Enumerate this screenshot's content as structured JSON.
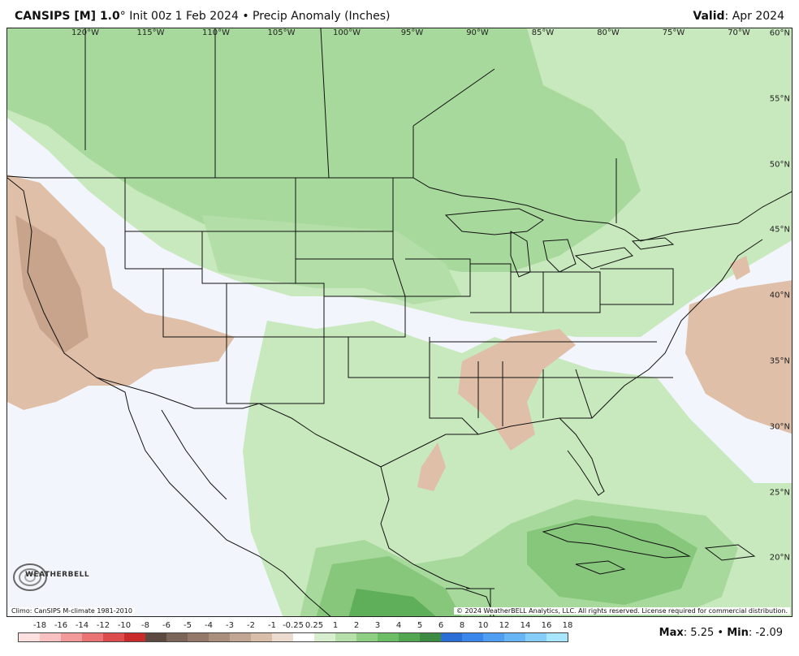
{
  "header": {
    "model": "CANSIPS [M] 1.0",
    "degree": "°",
    "init": " Init 00z 1 Feb 2024",
    "bullet": " • ",
    "product": "Precip Anomaly (Inches)",
    "valid_label": "Valid",
    "valid_value": ": Apr 2024"
  },
  "map": {
    "lon_labels": [
      "120°W",
      "115°W",
      "110°W",
      "105°W",
      "100°W",
      "95°W",
      "90°W",
      "85°W",
      "80°W",
      "75°W",
      "70°W"
    ],
    "lat_labels": [
      "60°N",
      "55°N",
      "50°N",
      "45°N",
      "40°N",
      "35°N",
      "30°N",
      "25°N",
      "20°N"
    ],
    "climo_note": "Climo: CanSIPS M-climate 1981-2010",
    "copyright_note": "© 2024 WeatherBELL Analytics, LLC. All rights reserved. License required for commercial distribution.",
    "logo_text": "WEATHERBELL",
    "colors": {
      "ocean_land_base": "#f2f5fb",
      "light_green": "#c8e8bd",
      "mid_green": "#a8d99c",
      "green": "#86c77b",
      "dark_green": "#5fae5a",
      "tan": "#dfbfa8",
      "brown": "#c9a48c",
      "boundary": "#111111"
    }
  },
  "legend": {
    "tick_labels": [
      "-18",
      "-16",
      "-14",
      "-12",
      "-10",
      "-8",
      "-6",
      "-5",
      "-4",
      "-3",
      "-2",
      "-1",
      "-0.25",
      "0.25",
      "1",
      "2",
      "3",
      "4",
      "5",
      "6",
      "8",
      "10",
      "12",
      "14",
      "16",
      "18"
    ],
    "colors": [
      "#fde0e0",
      "#f9c1c1",
      "#f29a9a",
      "#ea7474",
      "#de4d4d",
      "#c92b2b",
      "#5c4a42",
      "#7b6558",
      "#94796a",
      "#aa8f7d",
      "#c2a592",
      "#d8bea9",
      "#ecdccf",
      "#ffffff",
      "#d7efcf",
      "#b6e0a9",
      "#8fcf84",
      "#6dbd66",
      "#53a651",
      "#3f8a42",
      "#2b6fd6",
      "#3b86ea",
      "#4f9ef2",
      "#68b5f6",
      "#86cdf9",
      "#a9e6fb"
    ]
  },
  "stats": {
    "max_label": "Max",
    "max_value": ": 5.25",
    "sep": " • ",
    "min_label": "Min",
    "min_value": ": -2.09"
  }
}
